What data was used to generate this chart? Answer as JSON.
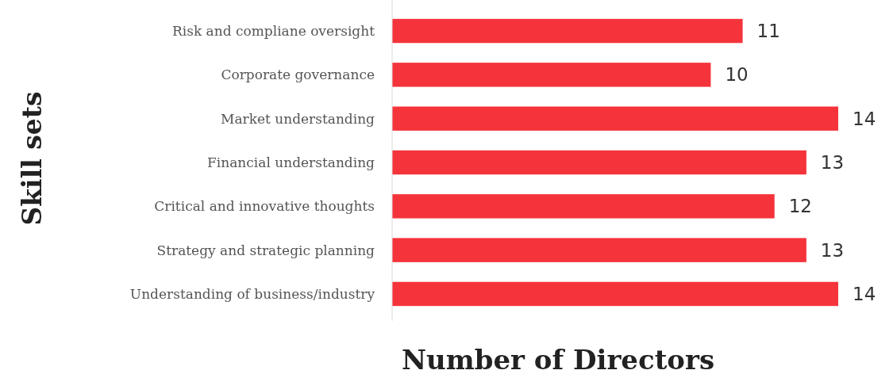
{
  "chart_data": {
    "type": "bar",
    "orientation": "horizontal",
    "xlabel": "Number of Directors",
    "ylabel": "Skill sets",
    "categories": [
      "Risk and compliane oversight",
      "Corporate governance",
      "Market understanding",
      "Financial understanding",
      "Critical and innovative thoughts",
      "Strategy and strategic planning",
      "Understanding of business/industry"
    ],
    "values": [
      11,
      10,
      14,
      13,
      12,
      13,
      14
    ],
    "color": "#f5333a",
    "data_labels": true
  }
}
